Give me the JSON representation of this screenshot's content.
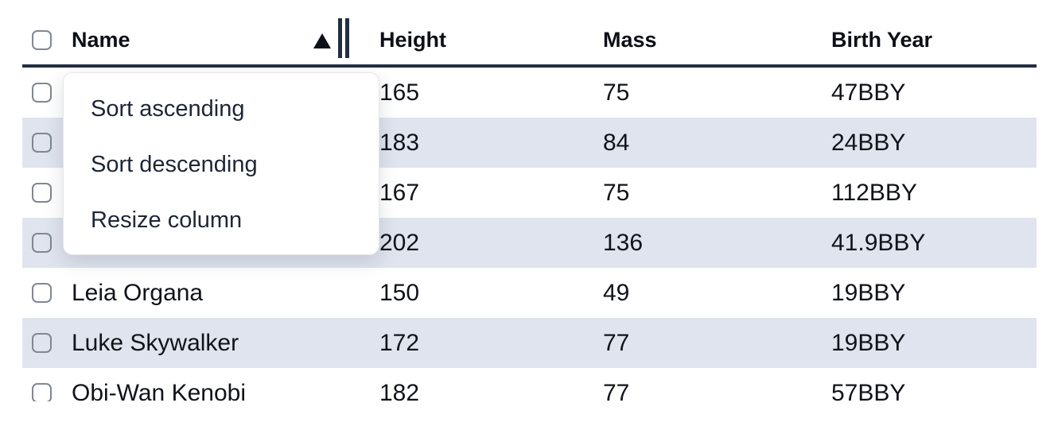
{
  "table": {
    "sorted_column": "Name",
    "sort_direction": "ascending",
    "columns": [
      {
        "label": "Name"
      },
      {
        "label": "Height"
      },
      {
        "label": "Mass"
      },
      {
        "label": "Birth Year"
      }
    ],
    "rows": [
      {
        "name": "",
        "height": "165",
        "mass": "75",
        "birth_year": "47BBY"
      },
      {
        "name": "",
        "height": "183",
        "mass": "84",
        "birth_year": "24BBY"
      },
      {
        "name": "",
        "height": "167",
        "mass": "75",
        "birth_year": "112BBY"
      },
      {
        "name": "",
        "height": "202",
        "mass": "136",
        "birth_year": "41.9BBY"
      },
      {
        "name": "Leia Organa",
        "height": "150",
        "mass": "49",
        "birth_year": "19BBY"
      },
      {
        "name": "Luke Skywalker",
        "height": "172",
        "mass": "77",
        "birth_year": "19BBY"
      },
      {
        "name": "Obi-Wan Kenobi",
        "height": "182",
        "mass": "77",
        "birth_year": "57BBY"
      }
    ]
  },
  "context_menu": {
    "items": [
      {
        "label": "Sort ascending"
      },
      {
        "label": "Sort descending"
      },
      {
        "label": "Resize column"
      }
    ]
  },
  "icons": {
    "sort_indicator": "triangle-up",
    "column_resize": "double-vertical-bars",
    "row_selector": "empty-checkbox"
  },
  "colors": {
    "header_border": "#232e40",
    "row_stripe": "#dfe4ee",
    "menu_text": "#1e2636",
    "cell_text": "#101319",
    "checkbox_border": "#818792"
  }
}
